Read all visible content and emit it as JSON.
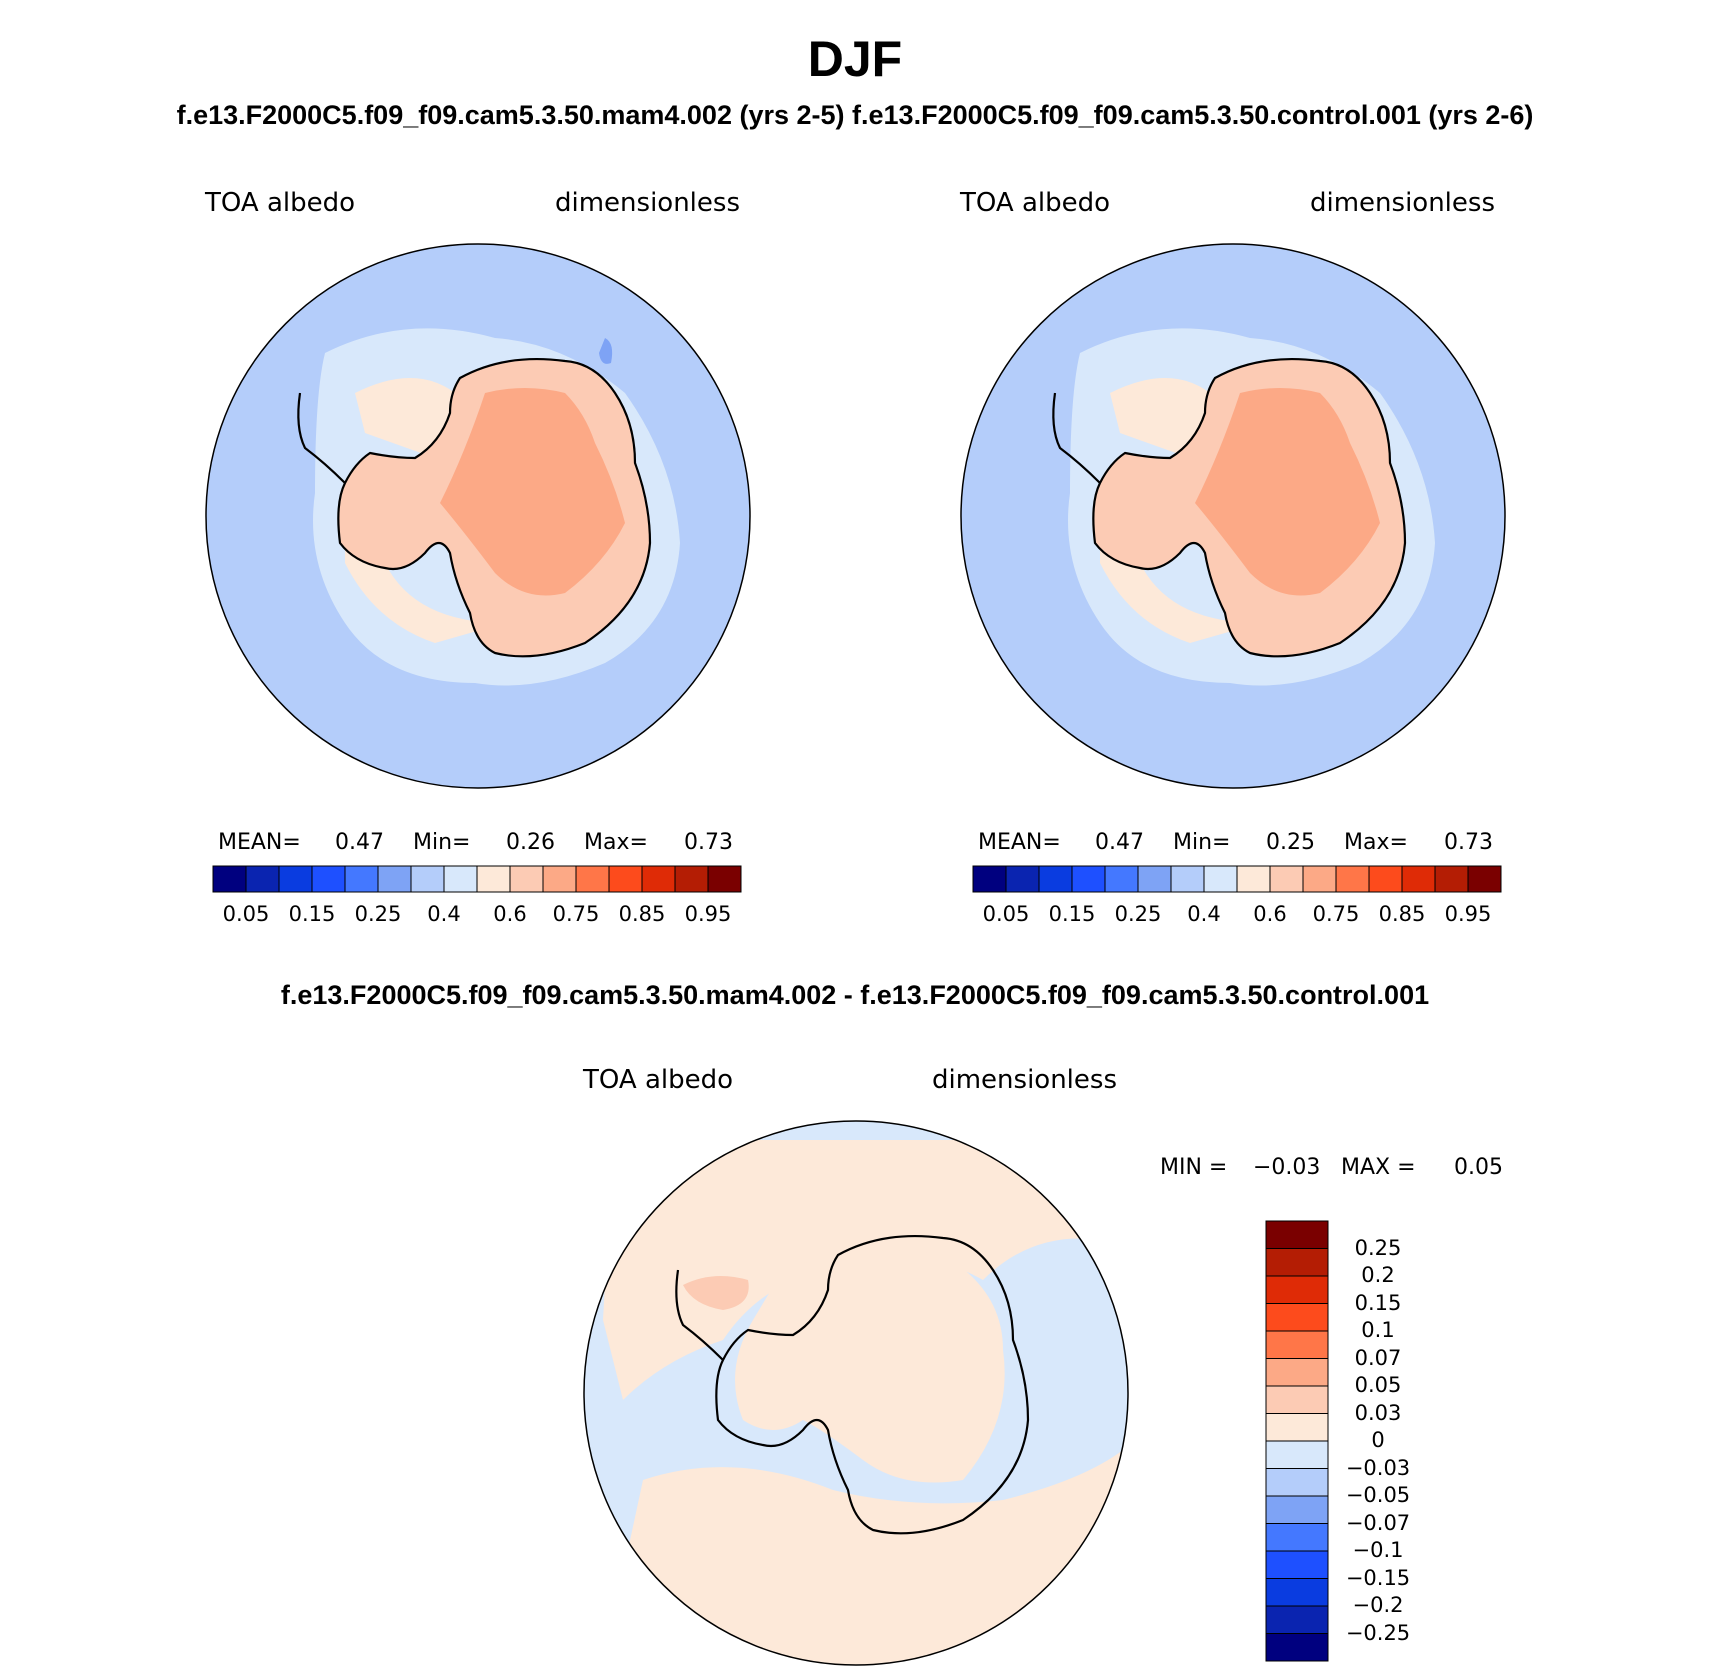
{
  "title": "DJF",
  "header": {
    "run1": "f.e13.F2000C5.f09_f09.cam5.3.50.mam4.002 (yrs 2-5)",
    "run2": "f.e13.F2000C5.f09_f09.cam5.3.50.control.001 (yrs 2-6)"
  },
  "diff_header": "f.e13.F2000C5.f09_f09.cam5.3.50.mam4.002 - f.e13.F2000C5.f09_f09.cam5.3.50.control.001",
  "panels": [
    {
      "variable": "TOA albedo",
      "units": "dimensionless",
      "mean_label": "MEAN=",
      "mean": "0.47",
      "min_label": "Min=",
      "min": "0.26",
      "max_label": "Max=",
      "max": "0.73"
    },
    {
      "variable": "TOA albedo",
      "units": "dimensionless",
      "mean_label": "MEAN=",
      "mean": "0.47",
      "min_label": "Min=",
      "min": "0.25",
      "max_label": "Max=",
      "max": "0.73"
    }
  ],
  "diff_panel": {
    "variable": "TOA albedo",
    "units": "dimensionless",
    "min_label": "MIN =",
    "min": "−0.03",
    "max_label": "MAX =",
    "max": "0.05"
  },
  "colorbar": {
    "colors": [
      "#00007f",
      "#0a24b0",
      "#0a3ce0",
      "#1e50ff",
      "#4478ff",
      "#7ea3f5",
      "#b4cdfa",
      "#d8e8fb",
      "#fde9d9",
      "#fccbb4",
      "#fca986",
      "#ff7648",
      "#fd4b1c",
      "#df2b06",
      "#b41d04",
      "#7a0000"
    ],
    "labels": [
      "0.05",
      "0.15",
      "0.25",
      "0.4",
      "0.6",
      "0.75",
      "0.85",
      "0.95"
    ]
  },
  "diff_colorbar": {
    "colors": [
      "#00007f",
      "#0a24b0",
      "#0a3ce0",
      "#1e50ff",
      "#4478ff",
      "#7ea3f5",
      "#b4cdfa",
      "#d8e8fb",
      "#fde9d9",
      "#fccbb4",
      "#fca986",
      "#ff7648",
      "#fd4b1c",
      "#df2b06",
      "#b41d04",
      "#7a0000"
    ],
    "labels": [
      "0.25",
      "0.2",
      "0.15",
      "0.1",
      "0.07",
      "0.05",
      "0.03",
      "0",
      "−0.03",
      "−0.05",
      "−0.07",
      "−0.1",
      "−0.15",
      "−0.2",
      "−0.25"
    ]
  },
  "map_colors": {
    "ocean": "#b4cdfa",
    "ocean_dark": "#7ea3f5",
    "sea_ice": "#d8e8fb",
    "continent": "#fccbb4",
    "plateau": "#fca986",
    "diff_positive": "#fde9d9",
    "diff_negative": "#d8e8fb",
    "diff_peak": "#fccbb4"
  }
}
